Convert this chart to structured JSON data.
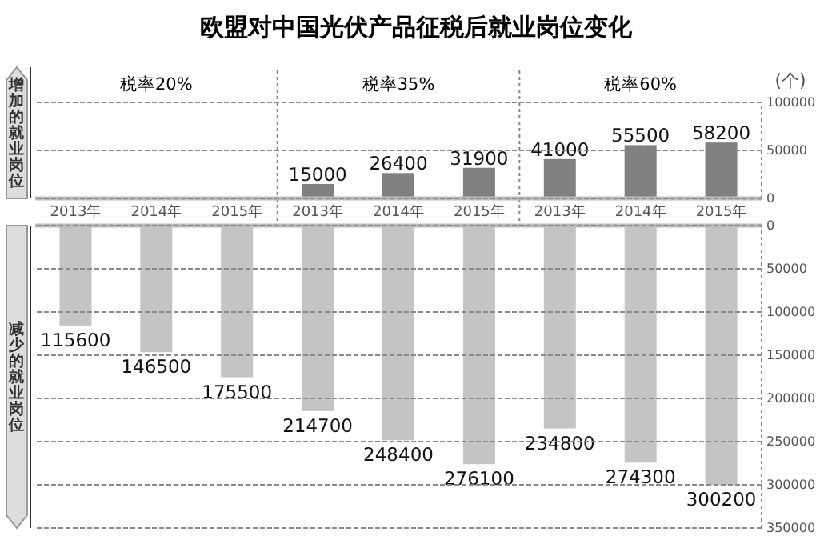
{
  "chart_data": [
    {
      "type": "bar",
      "title": "欧盟对中国光伏产品征税后就业岗位变化",
      "ylabel": "(个)",
      "annotations": [
        "增加的就业岗位",
        "税率20%",
        "税率35%",
        "税率60%"
      ],
      "categories": [
        "2013年",
        "2014年",
        "2015年",
        "2013年",
        "2014年",
        "2015年",
        "2013年",
        "2014年",
        "2015年"
      ],
      "values": [
        null,
        null,
        null,
        15000,
        26400,
        31900,
        41000,
        55500,
        58200
      ],
      "color": "#808080",
      "ylim": [
        0,
        100000
      ],
      "yticks": [
        0,
        50000,
        100000
      ],
      "grid": "y",
      "data_labels": true
    },
    {
      "type": "bar",
      "annotations": [
        "减少的就业岗位"
      ],
      "categories": [
        null,
        null,
        null,
        null,
        null,
        null,
        null,
        null,
        null
      ],
      "values": [
        115600,
        146500,
        175500,
        214700,
        248400,
        276100,
        234800,
        274300,
        300200
      ],
      "color": "#c4c4c4",
      "ylim": [
        350000,
        0
      ],
      "yticks": [
        0,
        50000,
        100000,
        150000,
        200000,
        250000,
        300000,
        350000
      ],
      "grid": "y",
      "data_labels": true,
      "tick_labels": "y"
    }
  ]
}
